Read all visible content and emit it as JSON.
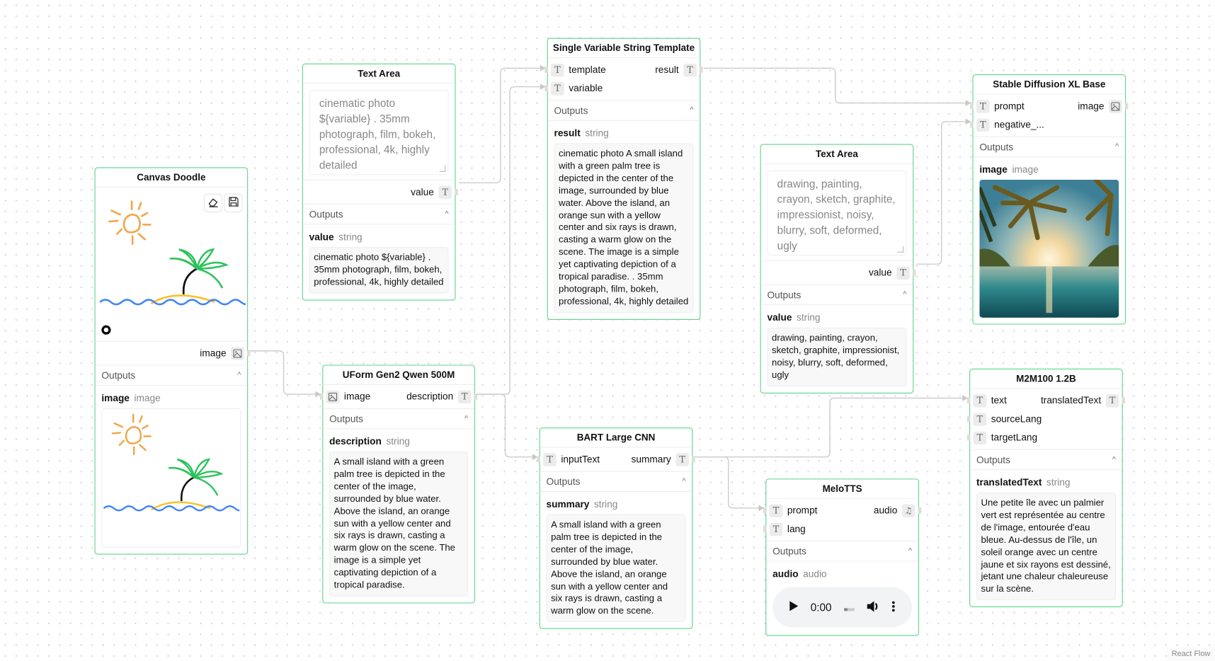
{
  "attribution": "React Flow",
  "colors": {
    "node_border": "#5fd38a",
    "edge": "#cccccc"
  },
  "nodes": {
    "canvas": {
      "title": "Canvas Doodle",
      "tools": [
        "eraser-icon",
        "save-icon"
      ],
      "inputs": [],
      "outputs": [
        {
          "label": "image",
          "icon": "image-icon"
        }
      ],
      "outputs_header": "Outputs",
      "output_name": "image",
      "output_type": "image"
    },
    "textarea1": {
      "title": "Text Area",
      "textarea_value": "cinematic photo ${variable} . 35mm photograph, film, bokeh, professional, 4k, highly detailed",
      "outputs": [
        {
          "label": "value",
          "icon": "text-icon"
        }
      ],
      "outputs_header": "Outputs",
      "output_name": "value",
      "output_type": "string",
      "output_text": "cinematic photo ${variable} . 35mm photograph, film, bokeh, professional, 4k, highly detailed"
    },
    "template": {
      "title": "Single Variable String Template",
      "inputs": [
        {
          "label": "template",
          "icon": "text-icon"
        },
        {
          "label": "variable",
          "icon": "text-icon"
        }
      ],
      "outputs": [
        {
          "label": "result",
          "icon": "text-icon"
        }
      ],
      "outputs_header": "Outputs",
      "output_name": "result",
      "output_type": "string",
      "output_text": "cinematic photo A small island with a green palm tree is depicted in the center of the image, surrounded by blue water. Above the island, an orange sun with a yellow center and six rays is drawn, casting a warm glow on the scene. The image is a simple yet captivating depiction of a tropical paradise. . 35mm photograph, film, bokeh, professional, 4k, highly detailed"
    },
    "uform": {
      "title": "UForm Gen2 Qwen 500M",
      "inputs": [
        {
          "label": "image",
          "icon": "image-icon"
        }
      ],
      "outputs": [
        {
          "label": "description",
          "icon": "text-icon"
        }
      ],
      "outputs_header": "Outputs",
      "output_name": "description",
      "output_type": "string",
      "output_text": "A small island with a green palm tree is depicted in the center of the image, surrounded by blue water. Above the island, an orange sun with a yellow center and six rays is drawn, casting a warm glow on the scene. The image is a simple yet captivating depiction of a tropical paradise."
    },
    "bart": {
      "title": "BART Large CNN",
      "inputs": [
        {
          "label": "inputText",
          "icon": "text-icon"
        }
      ],
      "outputs": [
        {
          "label": "summary",
          "icon": "text-icon"
        }
      ],
      "outputs_header": "Outputs",
      "output_name": "summary",
      "output_type": "string",
      "output_text": "A small island with a green palm tree is depicted in the center of the image, surrounded by blue water. Above the island, an orange sun with a yellow center and six rays is drawn, casting a warm glow on the scene."
    },
    "textarea2": {
      "title": "Text Area",
      "textarea_value": "drawing, painting, crayon, sketch, graphite, impressionist, noisy, blurry, soft, deformed, ugly",
      "outputs": [
        {
          "label": "value",
          "icon": "text-icon"
        }
      ],
      "outputs_header": "Outputs",
      "output_name": "value",
      "output_type": "string",
      "output_text": "drawing, painting, crayon, sketch, graphite, impressionist, noisy, blurry, soft, deformed, ugly"
    },
    "sdxl": {
      "title": "Stable Diffusion XL Base",
      "inputs": [
        {
          "label": "prompt",
          "icon": "text-icon"
        },
        {
          "label": "negative_...",
          "icon": "text-icon"
        }
      ],
      "outputs": [
        {
          "label": "image",
          "icon": "image-icon"
        }
      ],
      "outputs_header": "Outputs",
      "output_name": "image",
      "output_type": "image"
    },
    "melotts": {
      "title": "MeloTTS",
      "inputs": [
        {
          "label": "prompt",
          "icon": "text-icon"
        },
        {
          "label": "lang",
          "icon": "text-icon"
        }
      ],
      "outputs": [
        {
          "label": "audio",
          "icon": "music-icon"
        }
      ],
      "outputs_header": "Outputs",
      "output_name": "audio",
      "output_type": "audio",
      "audio_time": "0:00"
    },
    "m2m": {
      "title": "M2M100 1.2B",
      "inputs": [
        {
          "label": "text",
          "icon": "text-icon"
        },
        {
          "label": "sourceLang",
          "icon": "text-icon"
        },
        {
          "label": "targetLang",
          "icon": "text-icon"
        }
      ],
      "outputs": [
        {
          "label": "translatedText",
          "icon": "text-icon"
        }
      ],
      "outputs_header": "Outputs",
      "output_name": "translatedText",
      "output_type": "string",
      "output_text": "Une petite île avec un palmier vert est représentée au centre de l'image, entourée d'eau bleue. Au-dessus de l'île, un soleil orange avec un centre jaune et six rayons est dessiné, jetant une chaleur chaleureuse sur la scène."
    }
  }
}
